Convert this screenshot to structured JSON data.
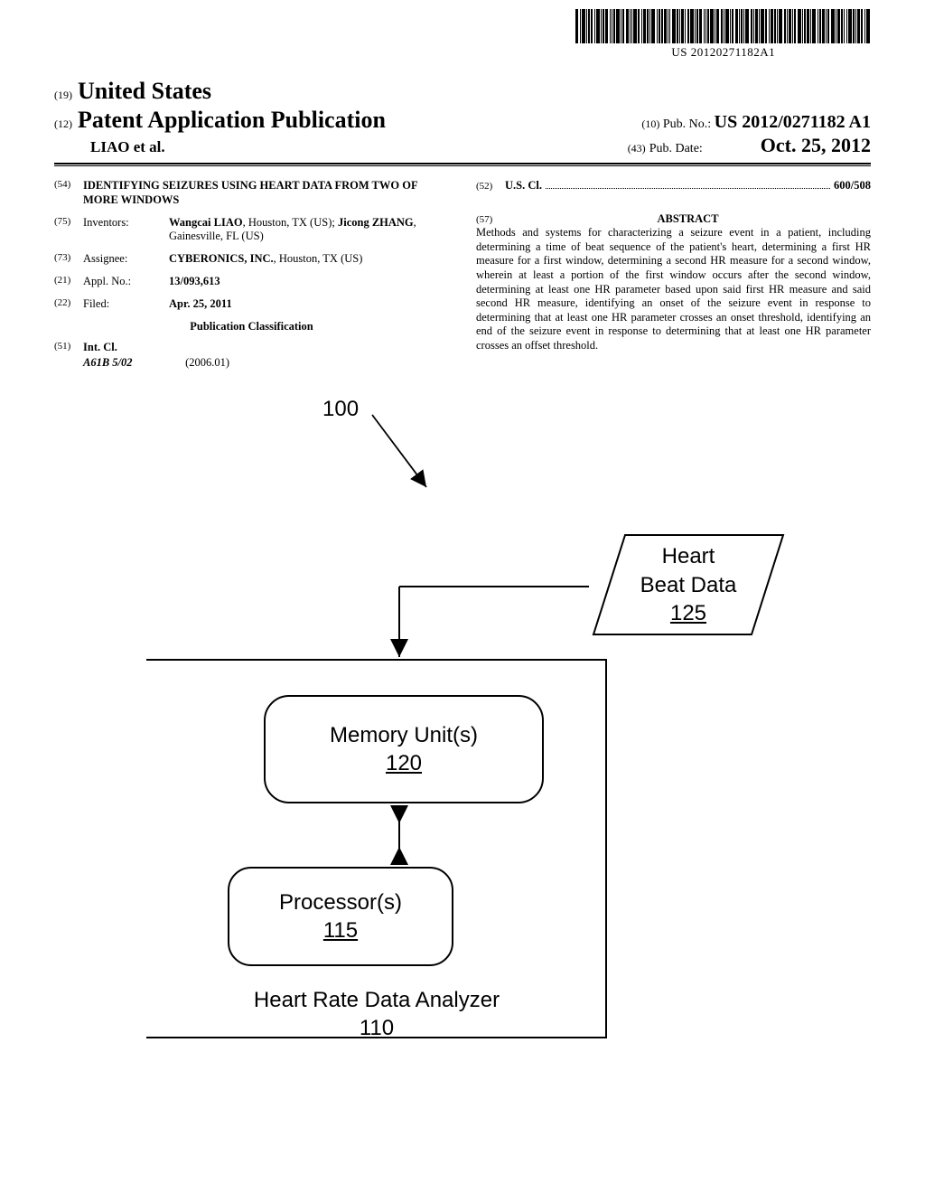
{
  "barcode_text": "US 20120271182A1",
  "header": {
    "code19": "(19)",
    "country": "United States",
    "code12": "(12)",
    "pub_kind": "Patent Application Publication",
    "code10": "(10)",
    "pub_no_label": "Pub. No.:",
    "pub_no": "US 2012/0271182 A1",
    "authors_short": "LIAO et al.",
    "code43": "(43)",
    "pub_date_label": "Pub. Date:",
    "pub_date": "Oct. 25, 2012"
  },
  "left": {
    "f54": {
      "num": "(54)",
      "text": "IDENTIFYING SEIZURES USING HEART DATA FROM TWO OF MORE WINDOWS"
    },
    "f75": {
      "num": "(75)",
      "label": "Inventors:",
      "value_html": "Wangcai LIAO, Houston, TX (US); Jicong ZHANG, Gainesville, FL (US)",
      "v1_name": "Wangcai LIAO",
      "v1_rest": ", Houston, TX (US);",
      "v2_name": "Jicong ZHANG",
      "v2_rest": ", Gainesville, FL (US)"
    },
    "f73": {
      "num": "(73)",
      "label": "Assignee:",
      "v_name": "CYBERONICS, INC.",
      "v_rest": ", Houston, TX (US)"
    },
    "f21": {
      "num": "(21)",
      "label": "Appl. No.:",
      "value": "13/093,613"
    },
    "f22": {
      "num": "(22)",
      "label": "Filed:",
      "value": "Apr. 25, 2011"
    },
    "pub_class": "Publication Classification",
    "f51": {
      "num": "(51)",
      "label": "Int. Cl.",
      "code": "A61B  5/02",
      "date": "(2006.01)"
    }
  },
  "right": {
    "f52": {
      "num": "(52)",
      "label": "U.S. Cl.",
      "value": "600/508"
    },
    "f57": {
      "num": "(57)",
      "label": "ABSTRACT"
    },
    "abstract": "Methods and systems for characterizing a seizure event in a patient, including determining a time of beat sequence of the patient's heart, determining a first HR measure for a first window, determining a second HR measure for a second window, wherein at least a portion of the first window occurs after the second window, determining at least one HR parameter based upon said first HR measure and said second HR measure, identifying an onset of the seizure event in response to determining that at least one HR parameter crosses an onset threshold, identifying an end of the seizure event in response to determining that at least one HR parameter crosses an offset threshold."
  },
  "figure": {
    "ref100": "100",
    "input": {
      "l1": "Heart",
      "l2": "Beat Data",
      "num": "125"
    },
    "memory": {
      "label": "Memory Unit(s)",
      "num": "120"
    },
    "processor": {
      "label": "Processor(s)",
      "num": "115"
    },
    "analyzer": {
      "label": "Heart Rate Data Analyzer",
      "num": "110"
    }
  },
  "style": {
    "barcode_widths": [
      3,
      1,
      4,
      1,
      2,
      2,
      1,
      4,
      1,
      2,
      3,
      1,
      1,
      2,
      4,
      1,
      2,
      3,
      1,
      1,
      4,
      2,
      1,
      3,
      2,
      1,
      4,
      1,
      2,
      2,
      3,
      1,
      1,
      4,
      2,
      1,
      3,
      1,
      2,
      4,
      1,
      2,
      3,
      1,
      1,
      2,
      4,
      1,
      3,
      2,
      1,
      4,
      1,
      2,
      3,
      1,
      2,
      1,
      4,
      2,
      1,
      3,
      1,
      4,
      2,
      1,
      3,
      2,
      1,
      4,
      2,
      1,
      3,
      1,
      2,
      4,
      1,
      2,
      3,
      1,
      4,
      1,
      2,
      3,
      1,
      2,
      4,
      1,
      3,
      2,
      1,
      1,
      4,
      2,
      1,
      3,
      2,
      1,
      4
    ],
    "barcode_gap": 1.2
  }
}
